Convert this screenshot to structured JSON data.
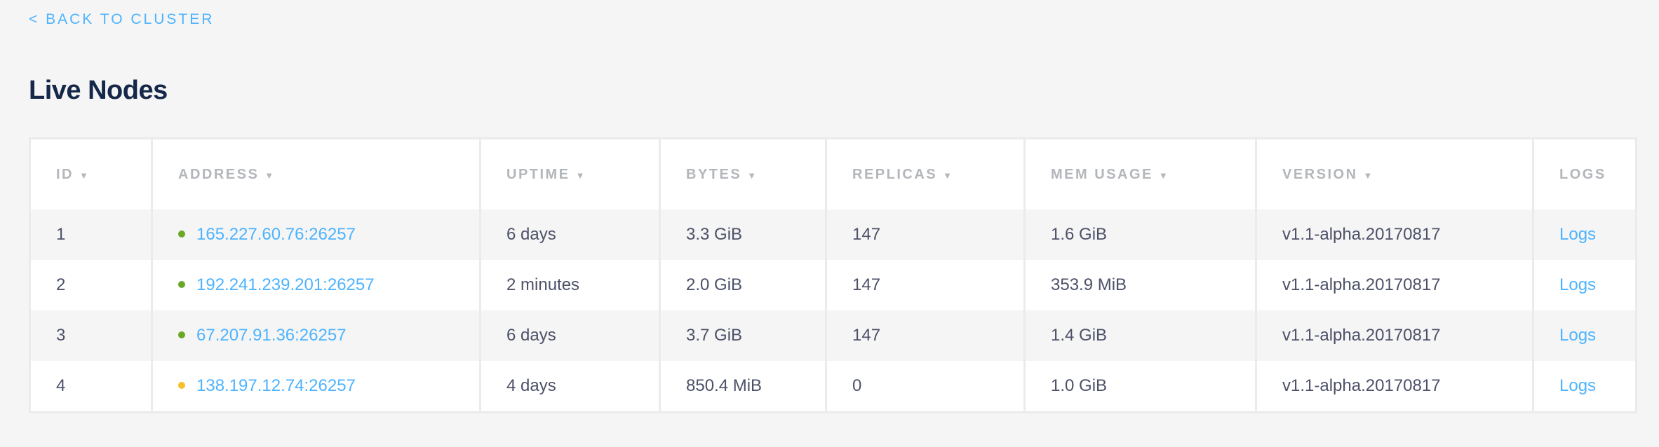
{
  "nav": {
    "back_label": "< BACK TO CLUSTER"
  },
  "page": {
    "title": "Live Nodes"
  },
  "colors": {
    "link": "#4db3ff",
    "status_live": "#6aa826",
    "status_suspect": "#f5c02a"
  },
  "table": {
    "columns": [
      {
        "label": "ID",
        "sort_icon": "▼"
      },
      {
        "label": "ADDRESS",
        "sort_icon": "▼"
      },
      {
        "label": "UPTIME",
        "sort_icon": "▼"
      },
      {
        "label": "BYTES",
        "sort_icon": "▼"
      },
      {
        "label": "REPLICAS",
        "sort_icon": "▼"
      },
      {
        "label": "MEM USAGE",
        "sort_icon": "▼"
      },
      {
        "label": "VERSION",
        "sort_icon": "▼"
      },
      {
        "label": "LOGS"
      }
    ],
    "rows": [
      {
        "id": "1",
        "status": "live",
        "address": "165.227.60.76:26257",
        "uptime": "6 days",
        "bytes": "3.3 GiB",
        "replicas": "147",
        "mem": "1.6 GiB",
        "version": "v1.1-alpha.20170817",
        "logs": "Logs"
      },
      {
        "id": "2",
        "status": "live",
        "address": "192.241.239.201:26257",
        "uptime": "2 minutes",
        "bytes": "2.0 GiB",
        "replicas": "147",
        "mem": "353.9 MiB",
        "version": "v1.1-alpha.20170817",
        "logs": "Logs"
      },
      {
        "id": "3",
        "status": "live",
        "address": "67.207.91.36:26257",
        "uptime": "6 days",
        "bytes": "3.7 GiB",
        "replicas": "147",
        "mem": "1.4 GiB",
        "version": "v1.1-alpha.20170817",
        "logs": "Logs"
      },
      {
        "id": "4",
        "status": "suspect",
        "address": "138.197.12.74:26257",
        "uptime": "4 days",
        "bytes": "850.4 MiB",
        "replicas": "0",
        "mem": "1.0 GiB",
        "version": "v1.1-alpha.20170817",
        "logs": "Logs"
      }
    ]
  }
}
